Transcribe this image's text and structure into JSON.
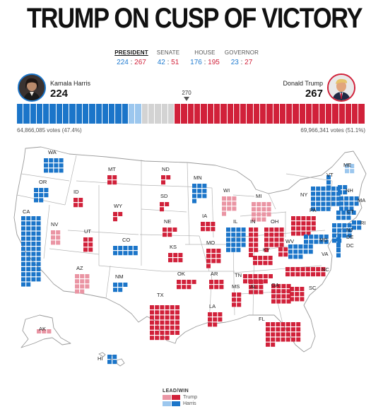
{
  "headline": "TRUMP ON CUSP OF VICTORY",
  "tabs": [
    {
      "label": "PRESIDENT",
      "dem": "224",
      "rep": "267"
    },
    {
      "label": "SENATE",
      "dem": "42",
      "rep": "51"
    },
    {
      "label": "HOUSE",
      "dem": "176",
      "rep": "195"
    },
    {
      "label": "GOVERNOR",
      "dem": "23",
      "rep": "27"
    }
  ],
  "harris": {
    "name": "Kamala Harris",
    "electoral": "224",
    "votes": "64,866,085 votes (47.4%)"
  },
  "trump": {
    "name": "Donald Trump",
    "electoral": "267",
    "votes": "69,966,341 votes (51.1%)"
  },
  "threshold": "270",
  "colors": {
    "harris_win": "#1b75c9",
    "harris_lead": "#9cc7ee",
    "trump_win": "#d1213a",
    "trump_lead": "#ea95a4",
    "uncalled": "#d3d3d3"
  },
  "legend": {
    "title": "LEAD/WIN",
    "trump": "Trump",
    "harris": "Harris"
  },
  "states": [
    {
      "abbr": "WA",
      "electoral": 12,
      "status": "harris_win"
    },
    {
      "abbr": "OR",
      "electoral": 8,
      "status": "harris_win"
    },
    {
      "abbr": "CA",
      "electoral": 54,
      "status": "harris_win"
    },
    {
      "abbr": "NV",
      "electoral": 6,
      "status": "trump_lead"
    },
    {
      "abbr": "ID",
      "electoral": 4,
      "status": "trump_win"
    },
    {
      "abbr": "MT",
      "electoral": 4,
      "status": "trump_win"
    },
    {
      "abbr": "WY",
      "electoral": 3,
      "status": "trump_win"
    },
    {
      "abbr": "UT",
      "electoral": 6,
      "status": "trump_win"
    },
    {
      "abbr": "AZ",
      "electoral": 11,
      "status": "trump_lead"
    },
    {
      "abbr": "CO",
      "electoral": 10,
      "status": "harris_win"
    },
    {
      "abbr": "NM",
      "electoral": 5,
      "status": "harris_win"
    },
    {
      "abbr": "ND",
      "electoral": 3,
      "status": "trump_win"
    },
    {
      "abbr": "SD",
      "electoral": 3,
      "status": "trump_win"
    },
    {
      "abbr": "NE",
      "electoral": 5,
      "status": "trump_win"
    },
    {
      "abbr": "KS",
      "electoral": 6,
      "status": "trump_win"
    },
    {
      "abbr": "OK",
      "electoral": 7,
      "status": "trump_win"
    },
    {
      "abbr": "TX",
      "electoral": 40,
      "status": "trump_win"
    },
    {
      "abbr": "MN",
      "electoral": 10,
      "status": "harris_win"
    },
    {
      "abbr": "IA",
      "electoral": 6,
      "status": "trump_win"
    },
    {
      "abbr": "MO",
      "electoral": 10,
      "status": "trump_win"
    },
    {
      "abbr": "AR",
      "electoral": 6,
      "status": "trump_win"
    },
    {
      "abbr": "LA",
      "electoral": 8,
      "status": "trump_win"
    },
    {
      "abbr": "WI",
      "electoral": 10,
      "status": "trump_lead"
    },
    {
      "abbr": "IL",
      "electoral": 19,
      "status": "harris_win"
    },
    {
      "abbr": "MI",
      "electoral": 15,
      "status": "trump_lead"
    },
    {
      "abbr": "IN",
      "electoral": 11,
      "status": "trump_win"
    },
    {
      "abbr": "OH",
      "electoral": 17,
      "status": "trump_win"
    },
    {
      "abbr": "KY",
      "electoral": 8,
      "status": "trump_win"
    },
    {
      "abbr": "TN",
      "electoral": 11,
      "status": "trump_win"
    },
    {
      "abbr": "MS",
      "electoral": 6,
      "status": "trump_win"
    },
    {
      "abbr": "AL",
      "electoral": 9,
      "status": "trump_win"
    },
    {
      "abbr": "GA",
      "electoral": 16,
      "status": "trump_win"
    },
    {
      "abbr": "FL",
      "electoral": 30,
      "status": "trump_win"
    },
    {
      "abbr": "SC",
      "electoral": 9,
      "status": "trump_win"
    },
    {
      "abbr": "NC",
      "electoral": 16,
      "status": "trump_win"
    },
    {
      "abbr": "VA",
      "electoral": 13,
      "status": "harris_win"
    },
    {
      "abbr": "WV",
      "electoral": 4,
      "status": "trump_win"
    },
    {
      "abbr": "PA",
      "electoral": 19,
      "status": "trump_win"
    },
    {
      "abbr": "NY",
      "electoral": 28,
      "status": "harris_win"
    },
    {
      "abbr": "VT",
      "electoral": 3,
      "status": "harris_win"
    },
    {
      "abbr": "NH",
      "electoral": 4,
      "status": "harris_win"
    },
    {
      "abbr": "ME",
      "electoral": 4,
      "status": "harris_lead"
    },
    {
      "abbr": "MA",
      "electoral": 11,
      "status": "harris_win"
    },
    {
      "abbr": "CT",
      "electoral": 7,
      "status": "harris_win"
    },
    {
      "abbr": "RI",
      "electoral": 4,
      "status": "harris_win"
    },
    {
      "abbr": "NJ",
      "electoral": 14,
      "status": "harris_win"
    },
    {
      "abbr": "DE",
      "electoral": 3,
      "status": "harris_win"
    },
    {
      "abbr": "MD",
      "electoral": 10,
      "status": "harris_win"
    },
    {
      "abbr": "DC",
      "electoral": 3,
      "status": "harris_win"
    },
    {
      "abbr": "AK",
      "electoral": 3,
      "status": "trump_lead"
    },
    {
      "abbr": "HI",
      "electoral": 4,
      "status": "harris_win"
    }
  ]
}
